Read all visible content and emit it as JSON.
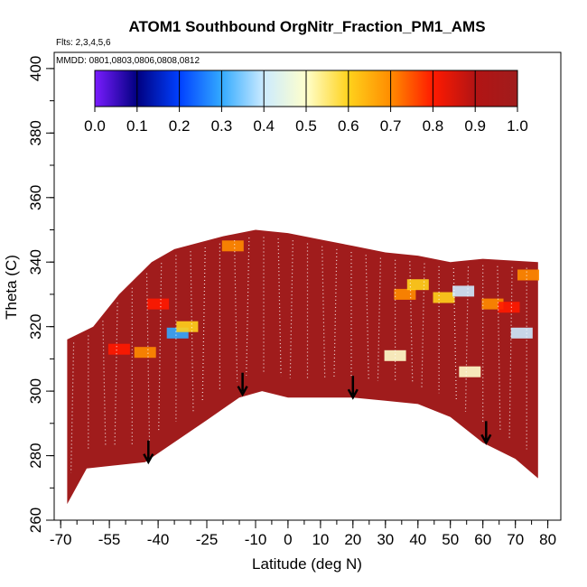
{
  "chart_data": {
    "type": "heatmap",
    "title": "ATOM1 Southbound OrgNitr_Fraction_PM1_AMS",
    "flights_note": "Flts: 2,3,4,5,6",
    "dates_note": "MMDD: 0801,0803,0806,0808,0812",
    "xlabel": "Latitude (deg N)",
    "ylabel": "Theta (C)",
    "xlim": [
      -72,
      84
    ],
    "ylim": [
      260,
      405
    ],
    "x_ticks": [
      -70,
      -55,
      -40,
      -25,
      -10,
      0,
      10,
      20,
      30,
      40,
      50,
      60,
      70,
      80
    ],
    "x_tick_labels": [
      "-70",
      "-55",
      "-40",
      "-25",
      "-10",
      "0",
      "10",
      "20",
      "30",
      "40",
      "50",
      "60",
      "70",
      "80"
    ],
    "y_ticks": [
      260,
      280,
      300,
      320,
      340,
      360,
      380,
      400
    ],
    "y_tick_labels": [
      "260",
      "280",
      "300",
      "320",
      "340",
      "360",
      "380",
      "400"
    ],
    "colorbar": {
      "range": [
        0.0,
        1.0
      ],
      "tick_labels": [
        "0.0",
        "0.1",
        "0.2",
        "0.3",
        "0.4",
        "0.5",
        "0.6",
        "0.7",
        "0.8",
        "0.9",
        "1.0"
      ],
      "colors": [
        "#7a1cff",
        "#000080",
        "#0040ff",
        "#33aaff",
        "#ccebff",
        "#ffffcc",
        "#ffd21c",
        "#ff8c00",
        "#ff1a00",
        "#b21414",
        "#a01c1c"
      ]
    },
    "dominant_value": 1.0,
    "surface_boundary": [
      [
        -68,
        265
      ],
      [
        -62,
        276
      ],
      [
        -44,
        278
      ],
      [
        -25,
        291
      ],
      [
        -15,
        298
      ],
      [
        -8,
        300
      ],
      [
        0,
        298
      ],
      [
        10,
        298
      ],
      [
        20,
        298
      ],
      [
        30,
        297
      ],
      [
        40,
        296
      ],
      [
        50,
        292
      ],
      [
        60,
        284
      ],
      [
        70,
        279
      ],
      [
        77,
        273
      ]
    ],
    "top_boundary": [
      [
        -68,
        316
      ],
      [
        -60,
        320
      ],
      [
        -52,
        330
      ],
      [
        -42,
        340
      ],
      [
        -35,
        344
      ],
      [
        -20,
        348
      ],
      [
        -10,
        350
      ],
      [
        0,
        349
      ],
      [
        10,
        347
      ],
      [
        20,
        345
      ],
      [
        30,
        343
      ],
      [
        40,
        342
      ],
      [
        50,
        340
      ],
      [
        60,
        341
      ],
      [
        77,
        340
      ]
    ],
    "anomalies": [
      {
        "lat": -52,
        "theta": 313,
        "value": 0.75
      },
      {
        "lat": -44,
        "theta": 312,
        "value": 0.7
      },
      {
        "lat": -40,
        "theta": 327,
        "value": 0.82
      },
      {
        "lat": -34,
        "theta": 318,
        "value": 0.25
      },
      {
        "lat": -31,
        "theta": 320,
        "value": 0.6
      },
      {
        "lat": -17,
        "theta": 345,
        "value": 0.65
      },
      {
        "lat": 33,
        "theta": 311,
        "value": 0.45
      },
      {
        "lat": 36,
        "theta": 330,
        "value": 0.7
      },
      {
        "lat": 40,
        "theta": 333,
        "value": 0.55
      },
      {
        "lat": 48,
        "theta": 329,
        "value": 0.6
      },
      {
        "lat": 54,
        "theta": 331,
        "value": 0.4
      },
      {
        "lat": 56,
        "theta": 306,
        "value": 0.5
      },
      {
        "lat": 63,
        "theta": 327,
        "value": 0.65
      },
      {
        "lat": 68,
        "theta": 326,
        "value": 0.75
      },
      {
        "lat": 72,
        "theta": 318,
        "value": 0.4
      },
      {
        "lat": 74,
        "theta": 336,
        "value": 0.72
      }
    ],
    "arrow_latitudes": [
      -43,
      -14,
      20,
      61
    ],
    "arrow_thetas": [
      278,
      299,
      298,
      284
    ]
  }
}
